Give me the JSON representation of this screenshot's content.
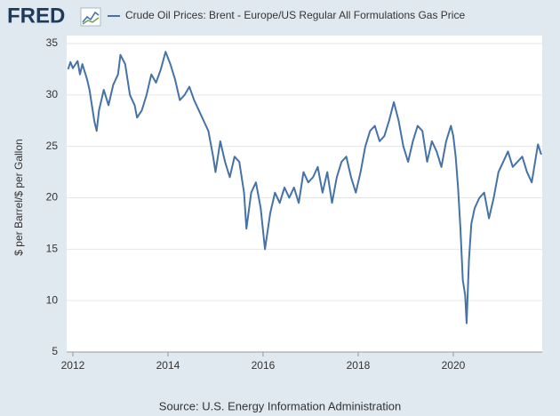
{
  "chart_data": {
    "type": "line",
    "logo": "FRED",
    "ylabel": "$ per Barrel/$ per Gallon",
    "source": "Source: U.S. Energy Information Administration",
    "xlim": [
      2011.87,
      2021.87
    ],
    "xticks": [
      2012,
      2014,
      2016,
      2018,
      2020
    ],
    "ylim": [
      5,
      35
    ],
    "yticks": [
      5,
      10,
      15,
      20,
      25,
      30,
      35
    ],
    "grid": true,
    "x": [
      2011.9,
      2011.95,
      2012.0,
      2012.1,
      2012.15,
      2012.2,
      2012.3,
      2012.35,
      2012.4,
      2012.45,
      2012.5,
      2012.55,
      2012.65,
      2012.75,
      2012.85,
      2012.95,
      2013.0,
      2013.1,
      2013.2,
      2013.3,
      2013.35,
      2013.45,
      2013.55,
      2013.65,
      2013.75,
      2013.85,
      2013.95,
      2014.05,
      2014.15,
      2014.25,
      2014.35,
      2014.45,
      2014.55,
      2014.65,
      2014.75,
      2014.85,
      2014.95,
      2015.0,
      2015.1,
      2015.2,
      2015.3,
      2015.4,
      2015.5,
      2015.6,
      2015.65,
      2015.75,
      2015.85,
      2015.95,
      2016.04,
      2016.15,
      2016.25,
      2016.35,
      2016.45,
      2016.55,
      2016.65,
      2016.75,
      2016.85,
      2016.95,
      2017.05,
      2017.15,
      2017.25,
      2017.35,
      2017.45,
      2017.55,
      2017.65,
      2017.75,
      2017.85,
      2017.95,
      2018.05,
      2018.15,
      2018.25,
      2018.35,
      2018.45,
      2018.55,
      2018.65,
      2018.75,
      2018.85,
      2018.95,
      2019.05,
      2019.15,
      2019.25,
      2019.35,
      2019.45,
      2019.55,
      2019.65,
      2019.75,
      2019.85,
      2019.95,
      2020.0,
      2020.05,
      2020.1,
      2020.15,
      2020.2,
      2020.25,
      2020.28,
      2020.33,
      2020.38,
      2020.45,
      2020.55,
      2020.65,
      2020.75,
      2020.85,
      2020.95,
      2021.05,
      2021.15,
      2021.25,
      2021.35,
      2021.45,
      2021.55,
      2021.65,
      2021.72,
      2021.78,
      2021.85
    ],
    "series": [
      {
        "name": "Crude Oil Prices: Brent - Europe/US Regular All Formulations Gas Price",
        "color": "#4572a7",
        "values": [
          32.5,
          33.2,
          32.6,
          33.3,
          32.0,
          33.0,
          31.5,
          30.5,
          29.0,
          27.5,
          26.5,
          28.5,
          30.5,
          29.0,
          31.0,
          32.0,
          33.9,
          33.0,
          30.0,
          29.0,
          27.8,
          28.5,
          30.0,
          32.0,
          31.2,
          32.5,
          34.2,
          33.0,
          31.5,
          29.5,
          30.0,
          30.8,
          29.5,
          28.5,
          27.5,
          26.5,
          24.0,
          22.5,
          25.5,
          23.5,
          22.0,
          24.0,
          23.5,
          20.5,
          17.0,
          20.5,
          21.5,
          19.0,
          15.0,
          18.5,
          20.5,
          19.5,
          21.0,
          20.0,
          21.0,
          19.5,
          22.5,
          21.5,
          22.0,
          23.0,
          20.5,
          22.5,
          19.5,
          22.0,
          23.5,
          24.0,
          22.0,
          20.5,
          22.5,
          25.0,
          26.5,
          27.0,
          25.5,
          26.0,
          27.5,
          29.3,
          27.5,
          25.0,
          23.5,
          25.5,
          27.0,
          26.5,
          23.5,
          25.5,
          24.5,
          23.0,
          25.5,
          27.0,
          26.0,
          24.0,
          21.0,
          17.0,
          12.0,
          10.5,
          7.8,
          14.0,
          17.5,
          19.0,
          20.0,
          20.5,
          18.0,
          20.0,
          22.5,
          23.5,
          24.5,
          23.0,
          23.5,
          24.0,
          22.5,
          21.5,
          23.5,
          25.2,
          24.2
        ]
      }
    ]
  }
}
